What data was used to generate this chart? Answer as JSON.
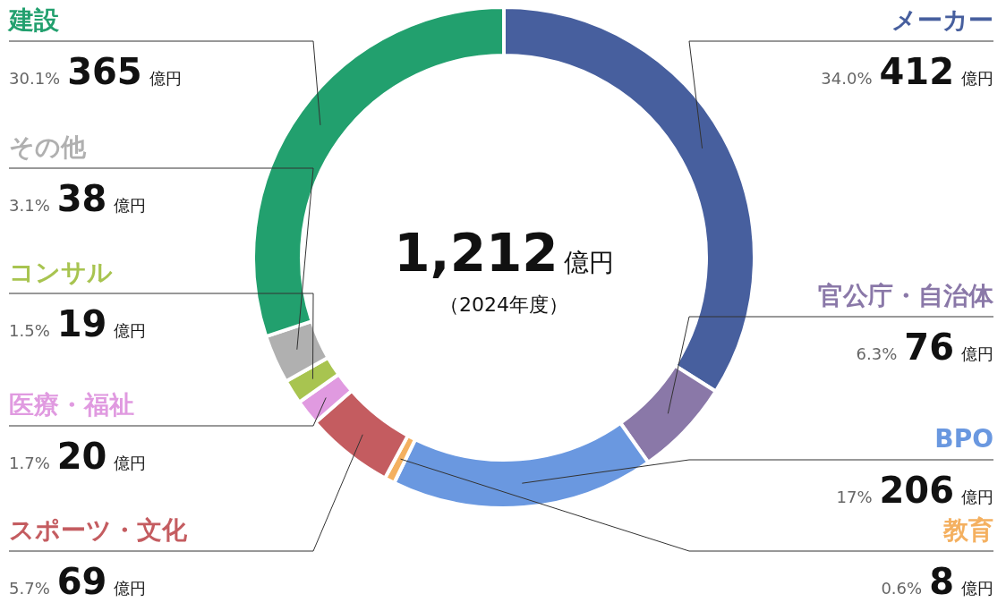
{
  "chart_data": {
    "type": "donut",
    "categories": [
      "メーカー",
      "官公庁・自治体",
      "BPO",
      "教育",
      "スポーツ・文化",
      "医療・福祉",
      "コンサル",
      "その他",
      "建設"
    ],
    "values": [
      412,
      76,
      206,
      8,
      69,
      20,
      19,
      38,
      365
    ],
    "colors": [
      "#475f9e",
      "#8a78a8",
      "#6a98e0",
      "#f4b060",
      "#c45c60",
      "#e09ae0",
      "#a8c450",
      "#b0b0b0",
      "#22a06e"
    ],
    "value_labels": [
      "34.0% 412 億円",
      "6.3% 76 億円",
      "17% 206 億円",
      "0.6% 8 億円",
      "5.7% 69 億円",
      "1.7% 20 億円",
      "1.5% 19 億円",
      "3.1% 38 億円",
      "30.1% 365 億円"
    ],
    "annotations": [
      "1,212億円",
      "（2024年度）"
    ]
  }
}
